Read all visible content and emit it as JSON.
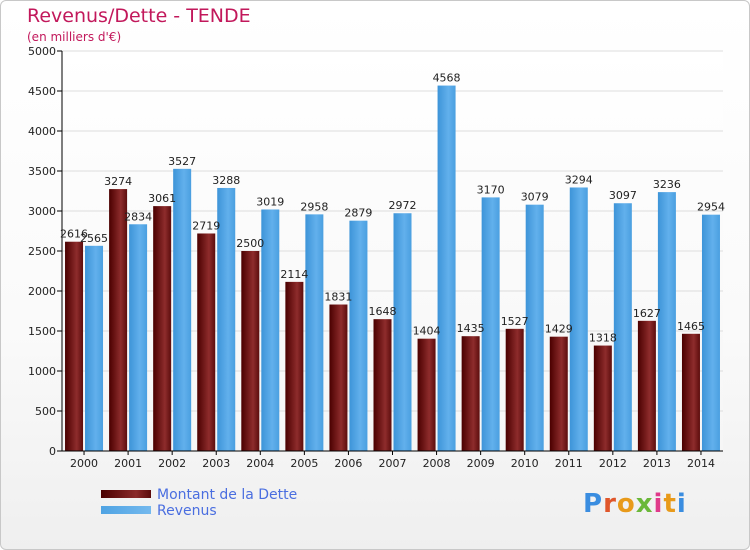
{
  "header": {
    "title": "Revenus/Dette - TENDE",
    "subtitle": "(en milliers d'€)"
  },
  "colors": {
    "title": "#c2185b",
    "dette": "#7a1616",
    "revenus": "#4aa0e0",
    "legend_text": "#4a6ee0"
  },
  "chart_data": {
    "type": "bar",
    "categories": [
      "2000",
      "2001",
      "2002",
      "2003",
      "2004",
      "2005",
      "2006",
      "2007",
      "2008",
      "2009",
      "2010",
      "2011",
      "2012",
      "2013",
      "2014"
    ],
    "series": [
      {
        "name": "Montant de la Dette",
        "values": [
          2616,
          3274,
          3061,
          2719,
          2500,
          2114,
          1831,
          1648,
          1404,
          1435,
          1527,
          1429,
          1318,
          1627,
          1465
        ]
      },
      {
        "name": "Revenus",
        "values": [
          2565,
          2834,
          3527,
          3288,
          3019,
          2958,
          2879,
          2972,
          4568,
          3170,
          3079,
          3294,
          3097,
          3236,
          2954
        ]
      }
    ],
    "data_labels": [
      [
        "2616",
        "3274",
        "3061",
        "2719",
        "2500",
        "2114",
        "1831",
        "1648",
        "1404",
        "1435",
        "1527",
        "1429",
        "1318",
        "1627",
        "1465"
      ],
      [
        "2565",
        "2834",
        "3527",
        "3288",
        "3019",
        "2958",
        "2879",
        "2972",
        "4568",
        "3170",
        "3079",
        "3294",
        "3097",
        "3236",
        "2954"
      ]
    ],
    "title": "Revenus/Dette - TENDE",
    "ylabel": "",
    "xlabel": "",
    "ylim": [
      0,
      5000
    ],
    "yticks": [
      0,
      500,
      1000,
      1500,
      2000,
      2500,
      3000,
      3500,
      4000,
      4500,
      5000
    ],
    "grid": true,
    "legend_position": "bottom-left"
  },
  "legend": {
    "items": [
      "Montant de la Dette",
      "Revenus"
    ]
  },
  "logo": {
    "text": "Proxiti"
  }
}
